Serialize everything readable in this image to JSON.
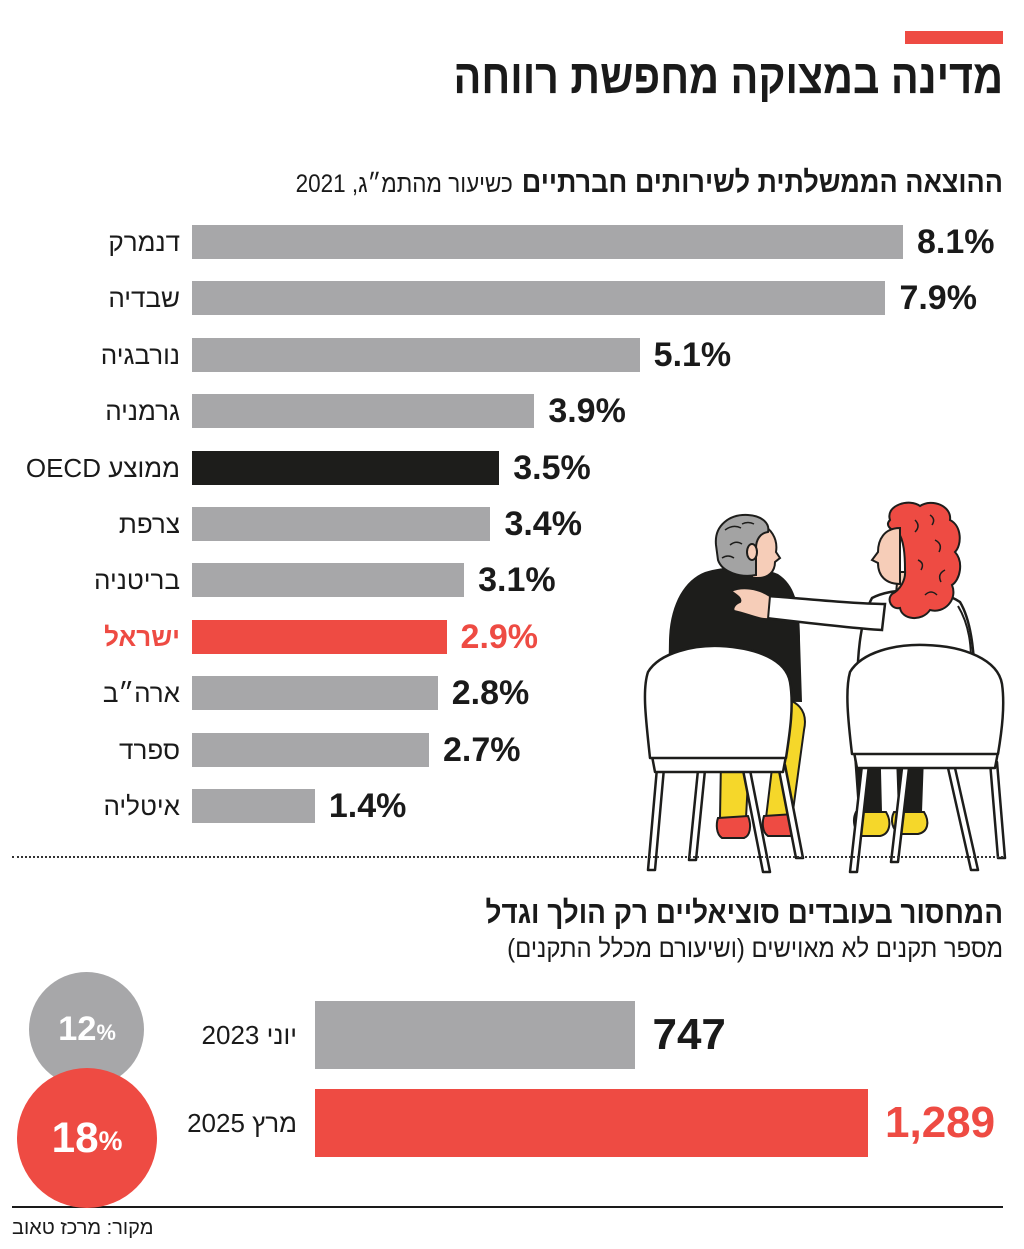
{
  "header": {
    "title": "מדינה במצוקה מחפשת רווחה"
  },
  "colors": {
    "accent": "#ee4b43",
    "bar_gray": "#a7a7a9",
    "benchmark": "#1d1d1b",
    "text": "#1a1a1a",
    "circle_text": "#ffffff"
  },
  "chart_data": [
    {
      "type": "bar",
      "title": "ההוצאה הממשלתית לשירותים חברתיים",
      "subtitle": "כשיעור מהתמ״ג, 2021",
      "categories": [
        "דנמרק",
        "שבדיה",
        "נורבגיה",
        "גרמניה",
        "ממוצע OECD",
        "צרפת",
        "בריטניה",
        "ישראל",
        "ארה״ב",
        "ספרד",
        "איטליה"
      ],
      "values": [
        8.1,
        7.9,
        5.1,
        3.9,
        3.5,
        3.4,
        3.1,
        2.9,
        2.8,
        2.7,
        1.4
      ],
      "value_labels": [
        "8.1%",
        "7.9%",
        "5.1%",
        "3.9%",
        "3.5%",
        "3.4%",
        "3.1%",
        "2.9%",
        "2.8%",
        "2.7%",
        "1.4%"
      ],
      "bar_colors": [
        "#a7a7a9",
        "#a7a7a9",
        "#a7a7a9",
        "#a7a7a9",
        "#1d1d1b",
        "#a7a7a9",
        "#a7a7a9",
        "#ee4b43",
        "#a7a7a9",
        "#a7a7a9",
        "#a7a7a9"
      ],
      "xlim": [
        0,
        8.1
      ],
      "grid": false
    },
    {
      "type": "bar",
      "title": "המחסור בעובדים סוציאליים רק הולך וגדל",
      "subtitle": "מספר תקנים לא מאוישים (ושיעורם מכלל התקנים)",
      "categories": [
        "יוני 2023",
        "מרץ 2025"
      ],
      "values": [
        747,
        1289
      ],
      "value_labels": [
        "747",
        "1,289"
      ],
      "share_of_positions": [
        12,
        18
      ],
      "percent_sign": "%",
      "bar_colors": [
        "#a7a7a9",
        "#ee4b43"
      ],
      "xlim": [
        0,
        1289
      ],
      "grid": false
    }
  ],
  "footer": {
    "source": "מקור: מרכז טאוב"
  }
}
